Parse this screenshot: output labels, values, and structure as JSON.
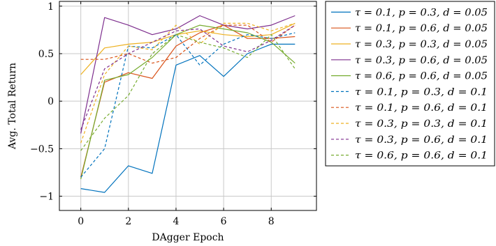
{
  "chart_data": {
    "type": "line",
    "xlabel": "DAgger Epoch",
    "ylabel": "Avg. Total Return",
    "xlim": [
      -0.9,
      9.9
    ],
    "ylim": [
      -1.15,
      1.05
    ],
    "xticks": [
      0,
      2,
      4,
      6,
      8
    ],
    "yticks": [
      -1,
      -0.5,
      0,
      0.5,
      1
    ],
    "xtick_labels": [
      "0",
      "2",
      "4",
      "6",
      "8"
    ],
    "ytick_labels": [
      "−1",
      "−0.5",
      "0",
      "0.5",
      "1"
    ],
    "grid": true,
    "legend_position": "outside-right",
    "x": [
      0,
      1,
      2,
      3,
      4,
      5,
      6,
      7,
      8,
      9
    ],
    "series": [
      {
        "name": "τ = 0.1, p = 0.3, d = 0.05",
        "color": "#0072BD",
        "style": "solid",
        "values": [
          -0.92,
          -0.96,
          -0.68,
          -0.76,
          0.38,
          0.48,
          0.26,
          0.5,
          0.6,
          0.6
        ]
      },
      {
        "name": "τ = 0.1, p = 0.6, d = 0.05",
        "color": "#D95319",
        "style": "solid",
        "values": [
          -0.8,
          0.2,
          0.3,
          0.24,
          0.58,
          0.72,
          0.8,
          0.66,
          0.66,
          0.68
        ]
      },
      {
        "name": "τ = 0.3, p = 0.3, d = 0.05",
        "color": "#EDB120",
        "style": "solid",
        "values": [
          0.28,
          0.56,
          0.6,
          0.62,
          0.7,
          0.74,
          0.7,
          0.68,
          0.7,
          0.82
        ]
      },
      {
        "name": "τ = 0.3, p = 0.6, d = 0.05",
        "color": "#7E2F8E",
        "style": "solid",
        "values": [
          -0.34,
          0.88,
          0.8,
          0.7,
          0.76,
          0.9,
          0.8,
          0.76,
          0.8,
          0.9
        ]
      },
      {
        "name": "τ = 0.6, p = 0.6, d = 0.05",
        "color": "#77AC30",
        "style": "solid",
        "values": [
          -0.82,
          0.22,
          0.28,
          0.46,
          0.7,
          0.8,
          0.76,
          0.72,
          0.62,
          0.4
        ]
      },
      {
        "name": "τ = 0.1, p = 0.3, d = 0.1",
        "color": "#0072BD",
        "style": "dashed",
        "values": [
          -0.8,
          -0.5,
          0.58,
          0.56,
          0.7,
          0.38,
          0.6,
          0.7,
          0.66,
          0.72
        ]
      },
      {
        "name": "τ = 0.1, p = 0.6, d = 0.1",
        "color": "#D95319",
        "style": "dashed",
        "values": [
          0.44,
          0.44,
          0.5,
          0.4,
          0.46,
          0.66,
          0.8,
          0.8,
          0.62,
          0.8
        ]
      },
      {
        "name": "τ = 0.3, p = 0.3, d = 0.1",
        "color": "#EDB120",
        "style": "dashed",
        "values": [
          -0.44,
          0.28,
          0.58,
          0.54,
          0.8,
          0.6,
          0.82,
          0.82,
          0.74,
          0.82
        ]
      },
      {
        "name": "τ = 0.3, p = 0.6, d = 0.1",
        "color": "#7E2F8E",
        "style": "dashed",
        "values": [
          -0.3,
          0.34,
          0.5,
          0.62,
          0.74,
          0.76,
          0.58,
          0.52,
          0.64,
          0.8
        ]
      },
      {
        "name": "τ = 0.6, p = 0.6, d = 0.1",
        "color": "#77AC30",
        "style": "dashed",
        "values": [
          -0.52,
          -0.18,
          0.06,
          0.5,
          0.7,
          0.62,
          0.56,
          0.46,
          0.7,
          0.34
        ]
      }
    ]
  }
}
